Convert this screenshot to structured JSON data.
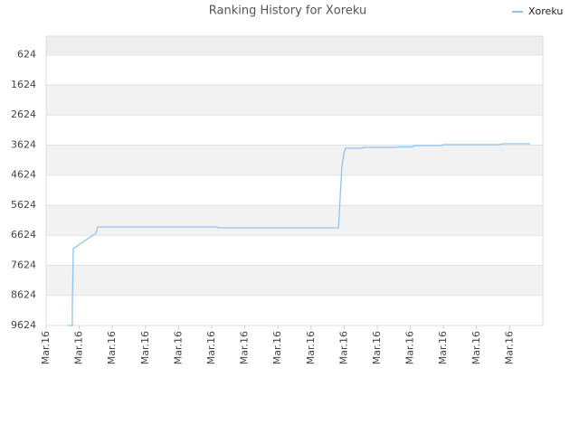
{
  "chart_data": {
    "type": "line",
    "title": "Ranking History for Xoreku",
    "x": [
      0.66,
      0.79,
      0.79,
      0.82,
      1.5,
      1.56,
      5.16,
      5.22,
      8.83,
      8.93,
      8.99,
      9.04,
      9.54,
      9.59,
      10.57,
      10.63,
      11.07,
      11.12,
      11.94,
      11.99,
      13.69,
      13.77,
      14.62
    ],
    "series": [
      {
        "name": "Xoreku",
        "color": "#8ec3ee",
        "values": [
          9624,
          9624,
          9083,
          7068,
          6556,
          6346,
          6346,
          6376,
          6376,
          4361,
          3910,
          3729,
          3729,
          3699,
          3699,
          3684,
          3684,
          3639,
          3639,
          3609,
          3609,
          3579,
          3579
        ]
      }
    ],
    "xlim": [
      0,
      15
    ],
    "xticks": [
      {
        "value": 0,
        "label": "Mar.16"
      },
      {
        "value": 1,
        "label": "Mar.16"
      },
      {
        "value": 2,
        "label": "Mar.16"
      },
      {
        "value": 3,
        "label": "Mar.16"
      },
      {
        "value": 4,
        "label": "Mar.16"
      },
      {
        "value": 5,
        "label": "Mar.16"
      },
      {
        "value": 6,
        "label": "Mar.16"
      },
      {
        "value": 7,
        "label": "Mar.16"
      },
      {
        "value": 8,
        "label": "Mar.16"
      },
      {
        "value": 9,
        "label": "Mar.16"
      },
      {
        "value": 10,
        "label": "Mar.16"
      },
      {
        "value": 11,
        "label": "Mar.16"
      },
      {
        "value": 12,
        "label": "Mar.16"
      },
      {
        "value": 13,
        "label": "Mar.16"
      },
      {
        "value": 14,
        "label": "Mar.16"
      }
    ],
    "ylim": [
      9624,
      0
    ],
    "yticks": [
      624,
      1624,
      2624,
      3624,
      4624,
      5624,
      6624,
      7624,
      8624,
      9624
    ],
    "grid": true,
    "legend": "top-right"
  }
}
